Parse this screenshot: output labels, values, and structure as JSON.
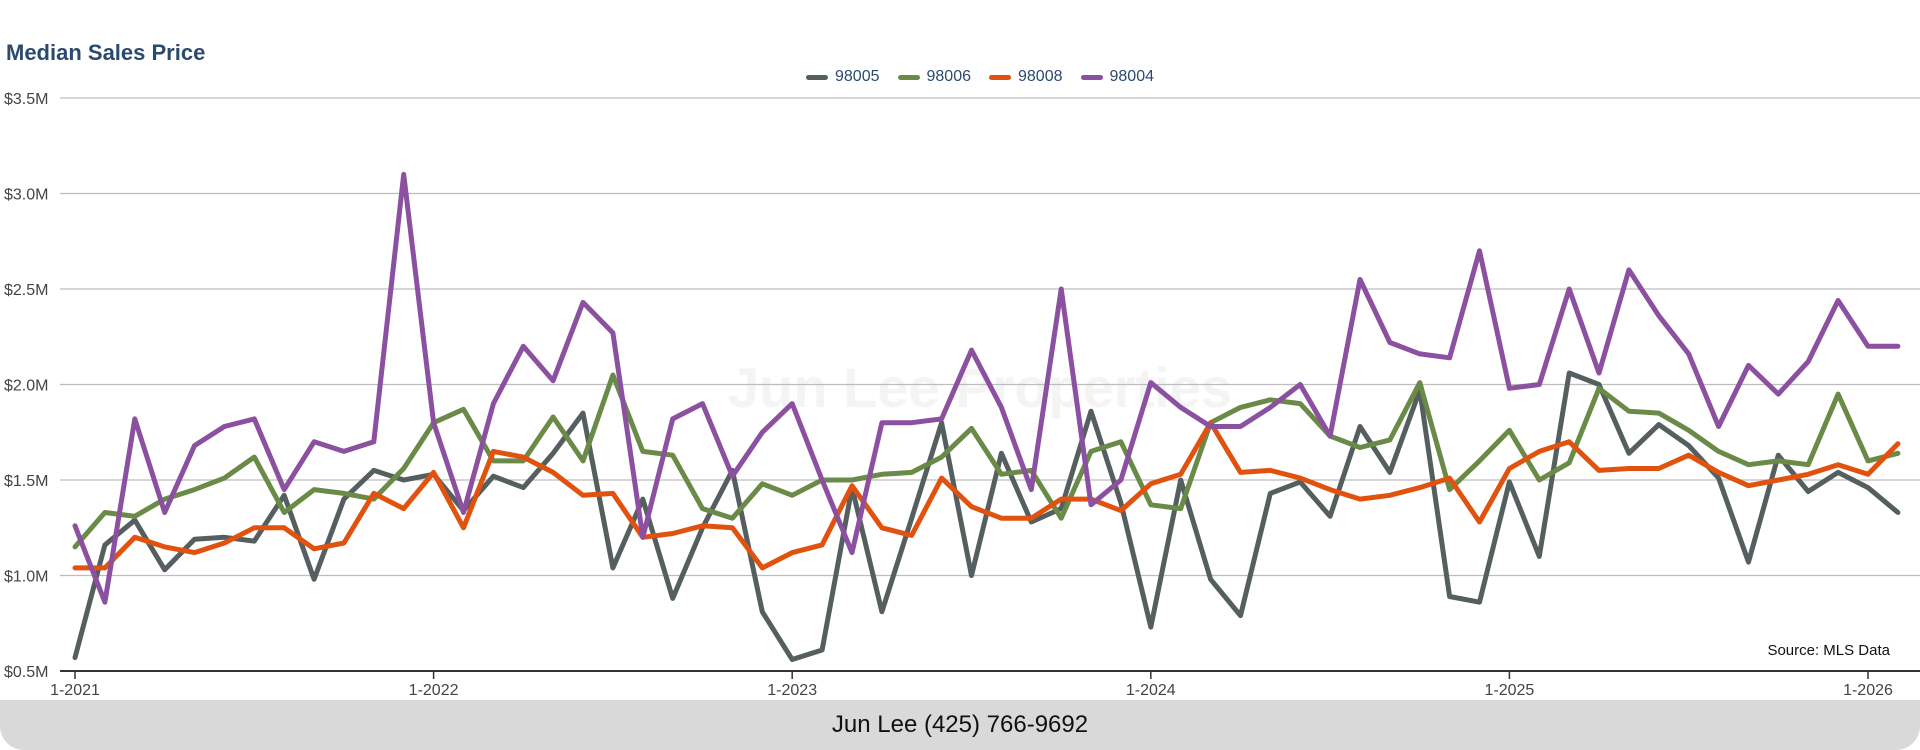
{
  "chart_data": {
    "type": "line",
    "title": "Median Sales Price",
    "source": "Source: MLS Data",
    "watermark": "Jun Lee Properties",
    "footer": "Jun Lee (425) 766-9692",
    "xlabel": "",
    "ylabel": "",
    "x_start": "2021-01",
    "months": 62,
    "x_ticks": [
      "1-2021",
      "1-2022",
      "1-2023",
      "1-2024",
      "1-2025",
      "1-2026"
    ],
    "x_tick_month_index": [
      0,
      12,
      24,
      36,
      48,
      60
    ],
    "y_ticks": [
      "$0.5M",
      "$1.0M",
      "$1.5M",
      "$2.0M",
      "$2.5M",
      "$3.0M",
      "$3.5M"
    ],
    "y_tick_values": [
      0.5,
      1.0,
      1.5,
      2.0,
      2.5,
      3.0,
      3.5
    ],
    "ylim": [
      0.5,
      3.5
    ],
    "y_unit": "millions USD",
    "grid": true,
    "legend_placement": "top-center",
    "series": [
      {
        "name": "98005",
        "color": "#555f5f",
        "values": [
          0.57,
          1.16,
          1.29,
          1.03,
          1.19,
          1.2,
          1.18,
          1.42,
          0.98,
          1.4,
          1.55,
          1.5,
          1.53,
          1.34,
          1.52,
          1.46,
          1.64,
          1.85,
          1.04,
          1.4,
          0.88,
          1.25,
          1.55,
          0.81,
          0.56,
          0.61,
          1.46,
          0.81,
          1.3,
          1.8,
          1.0,
          1.64,
          1.28,
          1.35,
          1.86,
          1.38,
          0.73,
          1.5,
          0.98,
          0.79,
          1.43,
          1.49,
          1.31,
          1.78,
          1.54,
          1.97,
          0.89,
          0.86,
          1.49,
          1.1,
          2.06,
          2.0,
          1.64,
          1.79,
          1.68,
          1.51,
          1.07,
          1.63,
          1.44,
          1.54,
          1.46,
          1.33
        ]
      },
      {
        "name": "98006",
        "color": "#6a8a48",
        "values": [
          1.15,
          1.33,
          1.31,
          1.4,
          1.45,
          1.51,
          1.62,
          1.33,
          1.45,
          1.43,
          1.4,
          1.56,
          1.8,
          1.87,
          1.6,
          1.6,
          1.83,
          1.6,
          2.05,
          1.65,
          1.63,
          1.35,
          1.3,
          1.48,
          1.42,
          1.5,
          1.5,
          1.53,
          1.54,
          1.62,
          1.77,
          1.53,
          1.55,
          1.3,
          1.65,
          1.7,
          1.37,
          1.35,
          1.8,
          1.88,
          1.92,
          1.9,
          1.73,
          1.67,
          1.71,
          2.01,
          1.45,
          1.6,
          1.76,
          1.5,
          1.59,
          1.98,
          1.86,
          1.85,
          1.76,
          1.65,
          1.58,
          1.6,
          1.58,
          1.95,
          1.6,
          1.64
        ]
      },
      {
        "name": "98008",
        "color": "#e0520e",
        "values": [
          1.04,
          1.04,
          1.2,
          1.15,
          1.12,
          1.17,
          1.25,
          1.25,
          1.14,
          1.17,
          1.43,
          1.35,
          1.54,
          1.25,
          1.65,
          1.62,
          1.54,
          1.42,
          1.43,
          1.2,
          1.22,
          1.26,
          1.25,
          1.04,
          1.12,
          1.16,
          1.47,
          1.25,
          1.21,
          1.51,
          1.36,
          1.3,
          1.3,
          1.4,
          1.4,
          1.34,
          1.48,
          1.53,
          1.8,
          1.54,
          1.55,
          1.51,
          1.45,
          1.4,
          1.42,
          1.46,
          1.51,
          1.28,
          1.56,
          1.65,
          1.7,
          1.55,
          1.56,
          1.56,
          1.63,
          1.54,
          1.47,
          1.5,
          1.53,
          1.58,
          1.53,
          1.69
        ]
      },
      {
        "name": "98004",
        "color": "#8c50a0",
        "values": [
          1.26,
          0.86,
          1.82,
          1.33,
          1.68,
          1.78,
          1.82,
          1.45,
          1.7,
          1.65,
          1.7,
          3.1,
          1.8,
          1.33,
          1.9,
          2.2,
          2.02,
          2.43,
          2.27,
          1.2,
          1.82,
          1.9,
          1.52,
          1.75,
          1.9,
          1.5,
          1.12,
          1.8,
          1.8,
          1.82,
          2.18,
          1.88,
          1.45,
          2.5,
          1.37,
          1.5,
          2.01,
          1.88,
          1.78,
          1.78,
          1.88,
          2.0,
          1.73,
          2.55,
          2.22,
          2.16,
          2.14,
          2.7,
          1.98,
          2.0,
          2.5,
          2.06,
          2.6,
          2.36,
          2.16,
          1.78,
          2.1,
          1.95,
          2.12,
          2.44,
          2.2,
          2.2
        ]
      }
    ]
  }
}
